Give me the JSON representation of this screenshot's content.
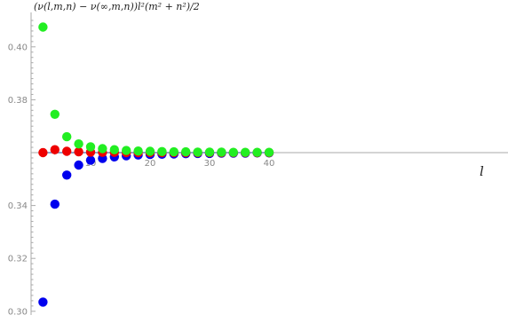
{
  "chart_data": {
    "type": "scatter",
    "title": "",
    "ylabel": "(ν(l,m,n) − ν(∞,m,n))l²(m² + n²)/2",
    "xlabel": "l",
    "xlim": [
      0,
      40
    ],
    "ylim": [
      0.3,
      0.41
    ],
    "x_ticks": [
      10,
      20,
      30,
      40
    ],
    "y_ticks": [
      0.3,
      0.32,
      0.34,
      0.38,
      0.4
    ],
    "y_tick_labels": [
      "0.30",
      "0.32",
      "0.34",
      "0.38",
      "0.40"
    ],
    "reference_y": 0.36,
    "grid": false,
    "series": [
      {
        "color": "#0000ee",
        "x": [
          2,
          4,
          6,
          8,
          10,
          12,
          14,
          16,
          18,
          20,
          22,
          24,
          26,
          28,
          30,
          32,
          34,
          36,
          38,
          40
        ],
        "y": [
          0.3035,
          0.3405,
          0.3515,
          0.3553,
          0.3571,
          0.3578,
          0.3584,
          0.3588,
          0.3591,
          0.3593,
          0.3594,
          0.3595,
          0.3596,
          0.3597,
          0.3597,
          0.3598,
          0.3598,
          0.3598,
          0.3599,
          0.3599
        ]
      },
      {
        "color": "#ee0000",
        "x": [
          2,
          4,
          6,
          8,
          10,
          12,
          14,
          16,
          18,
          20,
          22,
          24,
          26,
          28,
          30,
          32,
          34,
          36,
          38,
          40
        ],
        "y": [
          0.36,
          0.3611,
          0.3605,
          0.3603,
          0.3602,
          0.3601,
          0.3601,
          0.36,
          0.36,
          0.36,
          0.36,
          0.36,
          0.36,
          0.36,
          0.36,
          0.36,
          0.36,
          0.36,
          0.36,
          0.36
        ]
      },
      {
        "color": "#22ee22",
        "x": [
          2,
          4,
          6,
          8,
          10,
          12,
          14,
          16,
          18,
          20,
          22,
          24,
          26,
          28,
          30,
          32,
          34,
          36,
          38,
          40
        ],
        "y": [
          0.4075,
          0.3745,
          0.366,
          0.3633,
          0.3622,
          0.3615,
          0.3611,
          0.3608,
          0.3606,
          0.3605,
          0.3604,
          0.3603,
          0.3603,
          0.3602,
          0.3602,
          0.3602,
          0.3601,
          0.3601,
          0.3601,
          0.3601
        ]
      }
    ]
  }
}
